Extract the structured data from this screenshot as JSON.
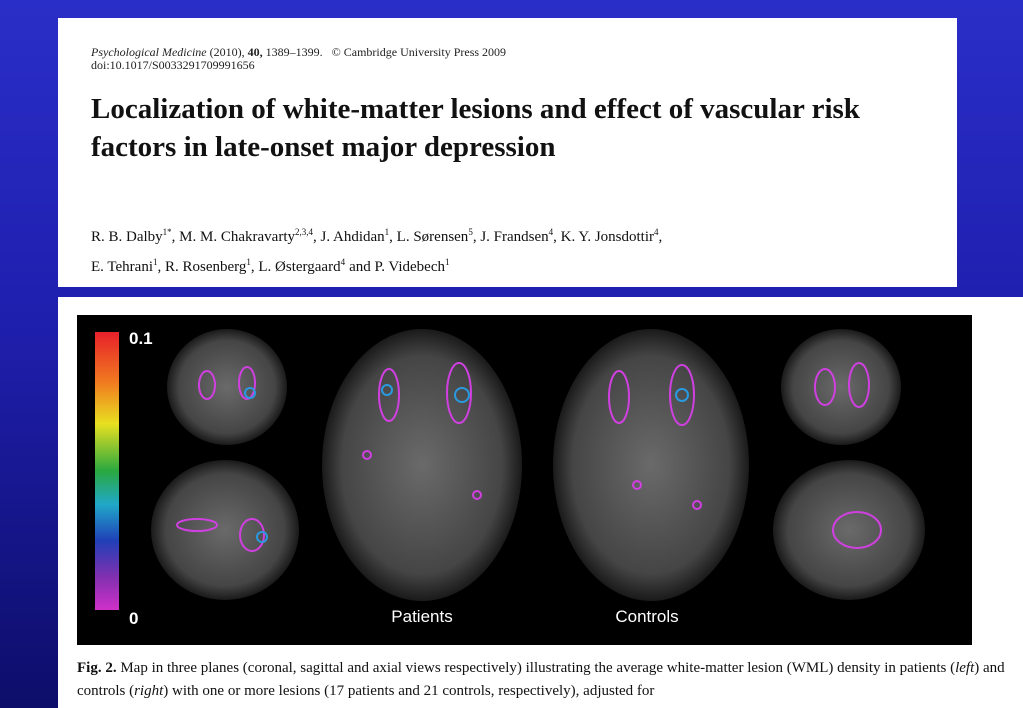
{
  "citation": {
    "journal": "Psychological Medicine",
    "year": "(2010),",
    "volume": "40,",
    "pages": "1389–1399.",
    "copyright": "© Cambridge University Press 2009",
    "doi": "doi:10.1017/S0033291709991656"
  },
  "title": "Localization of white-matter lesions and effect of vascular risk factors in late-onset major depression",
  "authors": [
    [
      {
        "name": "R. B. Dalby",
        "sup": "1*",
        "after": ","
      },
      {
        "name": "M. M. Chakravarty",
        "sup": "2,3,4",
        "after": ","
      },
      {
        "name": "J. Ahdidan",
        "sup": "1",
        "after": ","
      },
      {
        "name": "L. Sørensen",
        "sup": "5",
        "after": ","
      },
      {
        "name": "J. Frandsen",
        "sup": "4",
        "after": ","
      },
      {
        "name": "K. Y. Jonsdottir",
        "sup": "4",
        "after": ","
      }
    ],
    [
      {
        "name": "E. Tehrani",
        "sup": "1",
        "after": ","
      },
      {
        "name": "R. Rosenberg",
        "sup": "1",
        "after": ","
      },
      {
        "name": "L. Østergaard",
        "sup": "4",
        "after": "and"
      },
      {
        "name": "P. Videbech",
        "sup": "1"
      }
    ]
  ],
  "figure": {
    "scale_max": "0.1",
    "scale_min": "0",
    "label_left": "Patients",
    "label_right": "Controls",
    "caption": [
      "Fig. 2.",
      "Map in three planes (coronal, sagittal and axial views respectively) illustrating the average white-matter lesion (WML) density in patients (",
      "left",
      ") and controls (",
      "right",
      ") with one or more lesions (17 patients and 21 controls, respectively), adjusted for"
    ]
  }
}
